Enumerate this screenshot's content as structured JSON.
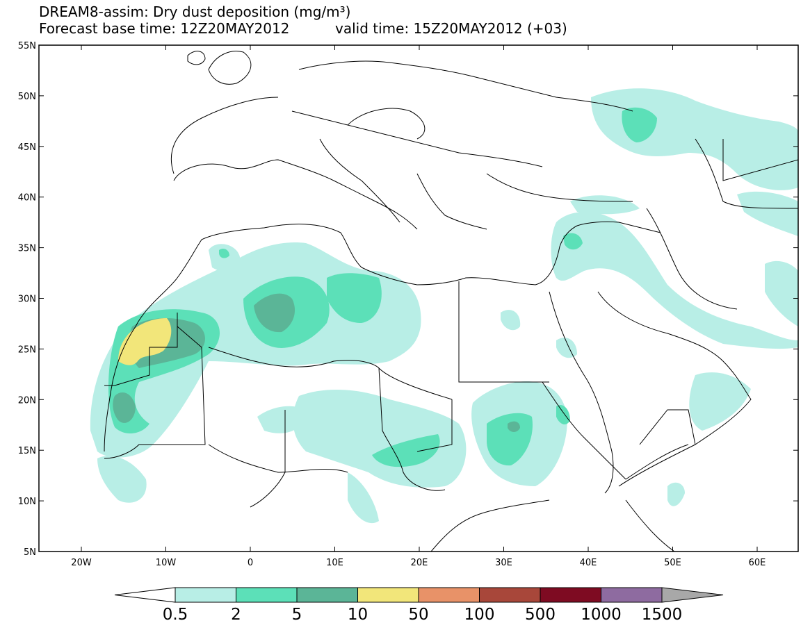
{
  "title": {
    "line1": "DREAM8-assim: Dry dust deposition (mg/m³)",
    "line2_left": "Forecast base time: 12Z20MAY2012",
    "line2_right": "valid time: 15Z20MAY2012 (+03)"
  },
  "axes": {
    "lat_labels": [
      "55N",
      "50N",
      "45N",
      "40N",
      "35N",
      "30N",
      "25N",
      "20N",
      "15N",
      "10N",
      "5N"
    ],
    "lon_labels": [
      "20W",
      "10W",
      "0",
      "10E",
      "20E",
      "30E",
      "40E",
      "50E",
      "60E"
    ]
  },
  "colorbar": {
    "labels": [
      "0.5",
      "2",
      "5",
      "10",
      "50",
      "100",
      "500",
      "1000",
      "1500"
    ],
    "colors": [
      "#ffffff",
      "#b8eee6",
      "#5ce0b8",
      "#5bb597",
      "#f2e67a",
      "#e89268",
      "#a8473a",
      "#7e0b22",
      "#8e6ba0",
      "#a8a8a8"
    ]
  },
  "legend_values": [
    "0.5",
    "2",
    "5",
    "10",
    "50",
    "100",
    "500",
    "1000",
    "1500"
  ]
}
